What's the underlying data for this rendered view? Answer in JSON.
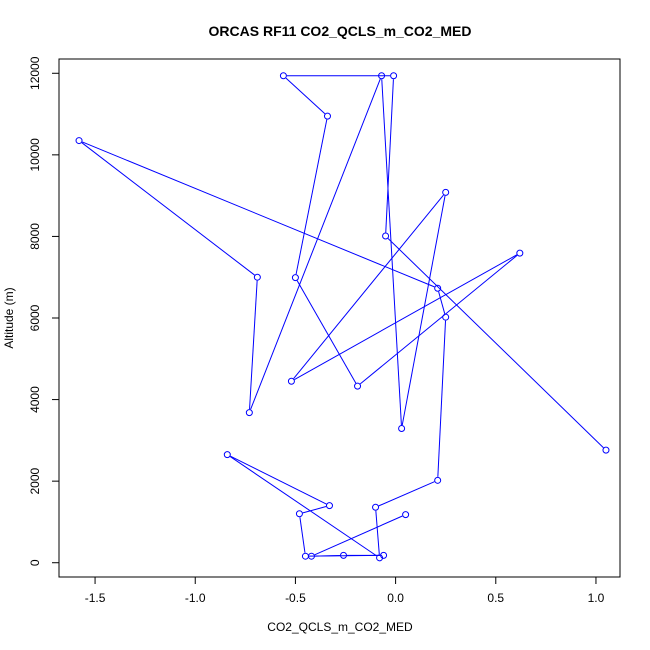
{
  "chart_data": {
    "type": "line",
    "title": "ORCAS RF11 CO2_QCLS_m_CO2_MED",
    "xlabel": "CO2_QCLS_m_CO2_MED",
    "ylabel": "Altitude (m)",
    "xlim": [
      -1.68,
      1.12
    ],
    "ylim": [
      -350,
      12350
    ],
    "x_ticks": [
      -1.5,
      -1.0,
      -0.5,
      0.0,
      0.5,
      1.0
    ],
    "x_tick_labels": [
      "-1.5",
      "-1.0",
      "-0.5",
      "0.0",
      "0.5",
      "1.0"
    ],
    "y_ticks": [
      0,
      2000,
      4000,
      6000,
      8000,
      10000,
      12000
    ],
    "y_tick_labels": [
      "0",
      "2000",
      "4000",
      "6000",
      "8000",
      "10000",
      "12000"
    ],
    "series": [
      {
        "color": "#0000ff",
        "x": [
          0.05,
          -0.42,
          -0.26,
          -0.06,
          -0.45,
          -0.48,
          -0.33,
          -0.84,
          -0.08,
          -0.1,
          0.21,
          0.25,
          0.21,
          -1.58,
          -0.69,
          -0.73,
          -0.07,
          0.03,
          0.25,
          -0.52,
          0.62,
          -0.19,
          -0.5,
          -0.34,
          -0.56,
          -0.01,
          -0.05,
          1.05
        ],
        "y": [
          1180,
          160,
          180,
          180,
          160,
          1200,
          1400,
          2650,
          120,
          1360,
          2020,
          6020,
          6730,
          10350,
          7000,
          3680,
          11940,
          3290,
          9080,
          4450,
          7590,
          4330,
          6990,
          10950,
          11940,
          11940,
          8010,
          2760
        ]
      }
    ]
  }
}
